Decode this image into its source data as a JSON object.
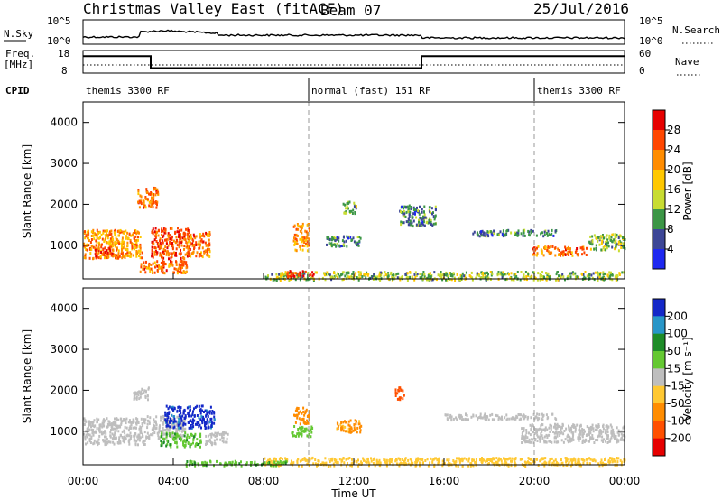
{
  "header": {
    "title": "Christmas Valley East (fitACF)",
    "beam": "Beam 07",
    "date": "25/Jul/2016"
  },
  "aux": {
    "nsky_label": "N.Sky",
    "nsky_ticks": [
      "10^5",
      "10^0"
    ],
    "nsearch_label": "N.Search",
    "nsearch_ticks": [
      "10^5",
      "10^0"
    ],
    "freq_label": "Freq.",
    "freq_unit": "[MHz]",
    "freq_ticks": [
      "18",
      "8"
    ],
    "nave_label": "Nave",
    "nave_ticks": [
      "60",
      "0"
    ],
    "cpid_label": "CPID",
    "cpid_segments": [
      {
        "label": "themis 3300 RF",
        "start_h": 0,
        "end_h": 10
      },
      {
        "label": "normal (fast) 151 RF",
        "start_h": 10,
        "end_h": 20
      },
      {
        "label": "themis 3300 RF",
        "start_h": 20,
        "end_h": 24
      }
    ],
    "freq_series": [
      {
        "start_h": 0,
        "end_h": 3,
        "mhz": 15.5
      },
      {
        "start_h": 3,
        "end_h": 15,
        "mhz": 10.2
      },
      {
        "start_h": 15,
        "end_h": 24,
        "mhz": 15.5
      }
    ]
  },
  "power": {
    "ylabel": "Slant Range [km]",
    "cb_label": "Power [dB]",
    "cb_ticks": [
      "28",
      "24",
      "20",
      "16",
      "12",
      "8",
      "4"
    ],
    "cb_colors": [
      "#e60000",
      "#ff4600",
      "#ff8c00",
      "#ffc800",
      "#c8dc32",
      "#3c9646",
      "#3c4696",
      "#1e28f0"
    ]
  },
  "velocity": {
    "ylabel": "Slant Range [km]",
    "cb_label": "Velocity [m s⁻¹]",
    "cb_ticks": [
      "200",
      "100",
      "50",
      "15",
      "-15",
      "-50",
      "-100",
      "-200"
    ],
    "cb_colors": [
      "#1428c8",
      "#2896c8",
      "#1e8c28",
      "#64c832",
      "#bebebe",
      "#ffc832",
      "#ff8c00",
      "#ff5000",
      "#e60000"
    ]
  },
  "xaxis": {
    "label": "Time UT",
    "ticks": [
      "00:00",
      "04:00",
      "08:00",
      "12:00",
      "16:00",
      "20:00",
      "00:00"
    ]
  },
  "chart_data": [
    {
      "type": "heatmap",
      "title": "Christmas Valley East (fitACF)",
      "xlabel": "Time UT",
      "ylabel": "Slant Range [km]",
      "xlim": [
        0,
        24
      ],
      "ylim": [
        180,
        4500
      ],
      "yticks": [
        1000,
        2000,
        3000,
        4000
      ],
      "cbar_label": "Power [dB]",
      "cbar_ticks": [
        4,
        8,
        12,
        16,
        20,
        24,
        28
      ],
      "clim": [
        0,
        30
      ],
      "regions": [
        {
          "t0": 0.0,
          "t1": 2.6,
          "r0": 700,
          "r1": 1400,
          "value": 20
        },
        {
          "t0": 0.5,
          "t1": 1.5,
          "r0": 750,
          "r1": 950,
          "value": 27
        },
        {
          "t0": 2.4,
          "t1": 3.3,
          "r0": 1950,
          "r1": 2450,
          "value": 22
        },
        {
          "t0": 3.0,
          "t1": 4.7,
          "r0": 700,
          "r1": 1450,
          "value": 24
        },
        {
          "t0": 4.6,
          "t1": 5.6,
          "r0": 750,
          "r1": 1350,
          "value": 22
        },
        {
          "t0": 2.5,
          "t1": 4.6,
          "r0": 350,
          "r1": 650,
          "value": 22
        },
        {
          "t0": 9.3,
          "t1": 10.0,
          "r0": 900,
          "r1": 1550,
          "value": 20
        },
        {
          "t0": 10.7,
          "t1": 12.3,
          "r0": 1000,
          "r1": 1250,
          "value": 8
        },
        {
          "t0": 11.5,
          "t1": 12.1,
          "r0": 1800,
          "r1": 2100,
          "value": 12
        },
        {
          "t0": 14.0,
          "t1": 15.6,
          "r0": 1500,
          "r1": 2000,
          "value": 8
        },
        {
          "t0": 17.2,
          "t1": 21.0,
          "r0": 1250,
          "r1": 1400,
          "value": 8
        },
        {
          "t0": 19.9,
          "t1": 22.3,
          "r0": 780,
          "r1": 1000,
          "value": 22
        },
        {
          "t0": 22.4,
          "t1": 24.0,
          "r0": 900,
          "r1": 1300,
          "value": 12
        },
        {
          "t0": 8.0,
          "t1": 24.0,
          "r0": 180,
          "r1": 380,
          "value": 12
        },
        {
          "t0": 9.0,
          "t1": 10.2,
          "r0": 250,
          "r1": 400,
          "value": 27
        }
      ]
    },
    {
      "type": "heatmap",
      "title": "",
      "xlabel": "Time UT",
      "ylabel": "Slant Range [km]",
      "xlim": [
        0,
        24
      ],
      "ylim": [
        180,
        4500
      ],
      "yticks": [
        1000,
        2000,
        3000,
        4000
      ],
      "cbar_label": "Velocity [m s⁻¹]",
      "cbar_ticks": [
        -200,
        -100,
        -50,
        -15,
        15,
        50,
        100,
        200
      ],
      "clim": [
        -250,
        250
      ],
      "regions": [
        {
          "t0": 0.0,
          "t1": 2.8,
          "r0": 700,
          "r1": 1350,
          "value": 0
        },
        {
          "t0": 2.2,
          "t1": 2.9,
          "r0": 1800,
          "r1": 2100,
          "value": 0
        },
        {
          "t0": 2.8,
          "t1": 4.5,
          "r0": 850,
          "r1": 1400,
          "value": 0
        },
        {
          "t0": 3.6,
          "t1": 5.8,
          "r0": 1100,
          "r1": 1650,
          "value": 210
        },
        {
          "t0": 3.4,
          "t1": 5.2,
          "r0": 650,
          "r1": 1000,
          "value": 40
        },
        {
          "t0": 5.4,
          "t1": 6.4,
          "r0": 700,
          "r1": 1000,
          "value": 0
        },
        {
          "t0": 9.3,
          "t1": 10.0,
          "r0": 1200,
          "r1": 1600,
          "value": -80
        },
        {
          "t0": 9.2,
          "t1": 10.2,
          "r0": 900,
          "r1": 1150,
          "value": 30
        },
        {
          "t0": 11.2,
          "t1": 12.3,
          "r0": 1000,
          "r1": 1300,
          "value": -60
        },
        {
          "t0": 13.8,
          "t1": 14.2,
          "r0": 1800,
          "r1": 2100,
          "value": -170
        },
        {
          "t0": 16.0,
          "t1": 21.0,
          "r0": 1300,
          "r1": 1450,
          "value": 0
        },
        {
          "t0": 19.4,
          "t1": 24.0,
          "r0": 750,
          "r1": 1200,
          "value": 0
        },
        {
          "t0": 8.0,
          "t1": 24.0,
          "r0": 180,
          "r1": 380,
          "value": -30
        },
        {
          "t0": 4.5,
          "t1": 9.0,
          "r0": 180,
          "r1": 300,
          "value": 40
        }
      ]
    }
  ]
}
